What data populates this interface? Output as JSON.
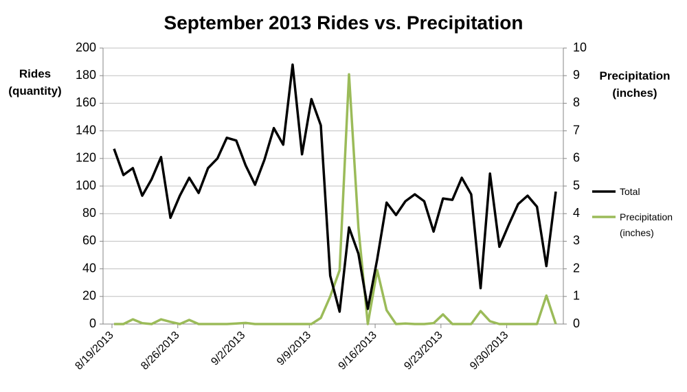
{
  "chart_data": {
    "type": "line",
    "title": "September 2013 Rides vs. Precipitation",
    "y_label": "Rides (quantity)",
    "y2_label": "Precipitation (inches)",
    "x": [
      "8/19/2013",
      "8/20/2013",
      "8/21/2013",
      "8/22/2013",
      "8/23/2013",
      "8/24/2013",
      "8/25/2013",
      "8/26/2013",
      "8/27/2013",
      "8/28/2013",
      "8/29/2013",
      "8/30/2013",
      "8/31/2013",
      "9/1/2013",
      "9/2/2013",
      "9/3/2013",
      "9/4/2013",
      "9/5/2013",
      "9/6/2013",
      "9/7/2013",
      "9/8/2013",
      "9/9/2013",
      "9/10/2013",
      "9/11/2013",
      "9/12/2013",
      "9/13/2013",
      "9/14/2013",
      "9/15/2013",
      "9/16/2013",
      "9/17/2013",
      "9/18/2013",
      "9/19/2013",
      "9/20/2013",
      "9/21/2013",
      "9/22/2013",
      "9/23/2013",
      "9/24/2013",
      "9/25/2013",
      "9/26/2013",
      "9/27/2013",
      "9/28/2013",
      "9/29/2013",
      "9/30/2013",
      "10/1/2013",
      "10/2/2013",
      "10/3/2013",
      "10/4/2013",
      "10/5/2013"
    ],
    "xticks": [
      "8/19/2013",
      "8/26/2013",
      "9/2/2013",
      "9/9/2013",
      "9/16/2013",
      "9/23/2013",
      "9/30/2013"
    ],
    "series": [
      {
        "name": "Total",
        "color": "#000000",
        "values": [
          127,
          108,
          113,
          93,
          105,
          121,
          77,
          93,
          106,
          95,
          113,
          120,
          135,
          133,
          115,
          101,
          119,
          142,
          130,
          188,
          123,
          163,
          144,
          35,
          9,
          70,
          51,
          11,
          47,
          88,
          79,
          89,
          94,
          89,
          67,
          91,
          90,
          106,
          94,
          26,
          109,
          56,
          72,
          87,
          93,
          85,
          42,
          96
        ]
      },
      {
        "name": "Precipitation (inches)",
        "color": "#9bbb59",
        "axis": "y2",
        "values": [
          0,
          0,
          0.17,
          0.03,
          0,
          0.17,
          0.08,
          0,
          0.15,
          0,
          0,
          0,
          0,
          0.02,
          0.04,
          0,
          0,
          0,
          0,
          0,
          0,
          0,
          0.22,
          1.0,
          1.95,
          9.05,
          3.5,
          0,
          1.95,
          0.5,
          0,
          0.02,
          0,
          0,
          0.03,
          0.35,
          0,
          0,
          0,
          0.47,
          0.1,
          0,
          0,
          0,
          0,
          0,
          1.03,
          0
        ]
      }
    ],
    "ylim": [
      0,
      200
    ],
    "yticks": [
      0,
      20,
      40,
      60,
      80,
      100,
      120,
      140,
      160,
      180,
      200
    ],
    "y2lim": [
      0,
      10
    ],
    "y2ticks": [
      0,
      1,
      2,
      3,
      4,
      5,
      6,
      7,
      8,
      9,
      10
    ],
    "grid": true
  }
}
